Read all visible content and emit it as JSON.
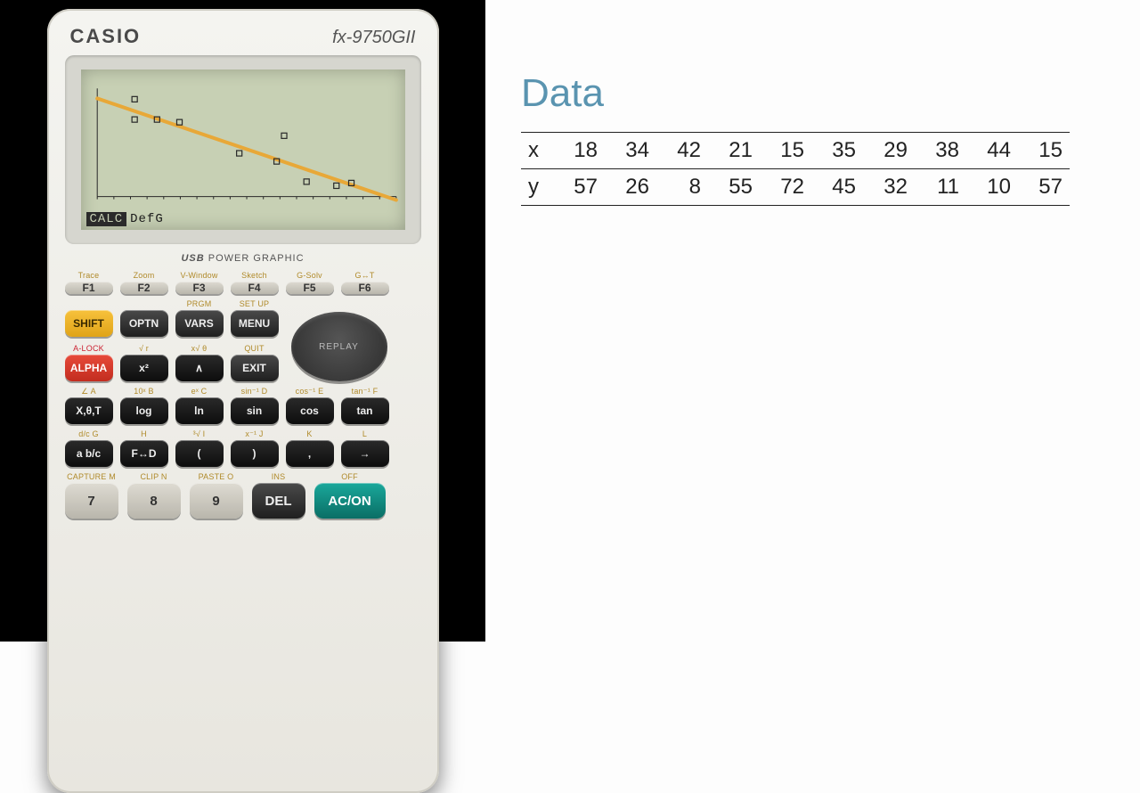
{
  "calculator": {
    "brand": "CASIO",
    "model": "fx-9750GII",
    "sublabel_left": "USB",
    "sublabel_right": "POWER GRAPHIC",
    "screen": {
      "background_color": "#c7d0b4",
      "axis_color": "#2a2a2a",
      "marker_color": "#2a2a2a",
      "line_color": "#e8a838",
      "line_width": 4,
      "menu_items": [
        "CALC",
        "DefG"
      ],
      "plot": {
        "type": "scatter+line",
        "xlim": [
          10,
          50
        ],
        "ylim": [
          0,
          80
        ],
        "regression": {
          "a": -1.88,
          "b": 91.4
        },
        "points_x": [
          18,
          34,
          42,
          21,
          15,
          35,
          29,
          38,
          44,
          15
        ],
        "points_y": [
          57,
          26,
          8,
          55,
          72,
          45,
          32,
          11,
          10,
          57
        ],
        "x_ticks": 18
      }
    },
    "fkeys": [
      {
        "sup": "Trace",
        "label": "F1"
      },
      {
        "sup": "Zoom",
        "label": "F2"
      },
      {
        "sup": "V-Window",
        "label": "F3"
      },
      {
        "sup": "Sketch",
        "label": "F4"
      },
      {
        "sup": "G-Solv",
        "label": "G-Solv",
        "label2": "F5"
      },
      {
        "sup": "G↔T",
        "label": "F6"
      }
    ],
    "row2": {
      "left": [
        {
          "sup": "",
          "label": "SHIFT",
          "cls": "k-shift"
        },
        {
          "sup": "",
          "label": "OPTN",
          "cls": "k-dark"
        },
        {
          "sup": "PRGM",
          "label": "VARS",
          "cls": "k-dark"
        },
        {
          "sup": "SET UP",
          "label": "MENU",
          "cls": "k-dark"
        },
        {
          "sup": "A-LOCK",
          "label": "ALPHA",
          "cls": "k-alpha",
          "supcls": "red"
        },
        {
          "sup": "√   r",
          "label": "x²",
          "cls": "k-black"
        },
        {
          "sup": "x√   θ",
          "label": "∧",
          "cls": "k-black"
        },
        {
          "sup": "QUIT",
          "label": "EXIT",
          "cls": "k-dark"
        }
      ],
      "replay_label": "REPLAY"
    },
    "row3": [
      {
        "sup": "∠   A",
        "label": "X,θ,T",
        "cls": "k-black"
      },
      {
        "sup": "10ˣ  B",
        "label": "log",
        "cls": "k-black"
      },
      {
        "sup": "eˣ  C",
        "label": "ln",
        "cls": "k-black"
      },
      {
        "sup": "sin⁻¹ D",
        "label": "sin",
        "cls": "k-black"
      },
      {
        "sup": "cos⁻¹ E",
        "label": "cos",
        "cls": "k-black"
      },
      {
        "sup": "tan⁻¹ F",
        "label": "tan",
        "cls": "k-black"
      }
    ],
    "row4": [
      {
        "sup": "d/c  G",
        "label": "a b/c",
        "cls": "k-black"
      },
      {
        "sup": "   H",
        "label": "F↔D",
        "cls": "k-black"
      },
      {
        "sup": "³√  I",
        "label": "(",
        "cls": "k-black"
      },
      {
        "sup": "x⁻¹  J",
        "label": ")",
        "cls": "k-black"
      },
      {
        "sup": "   K",
        "label": ",",
        "cls": "k-black"
      },
      {
        "sup": "   L",
        "label": "→",
        "cls": "k-black"
      }
    ],
    "row5": [
      {
        "sup": "CAPTURE M",
        "label": "7",
        "cls": "k-grey"
      },
      {
        "sup": "CLIP  N",
        "label": "8",
        "cls": "k-grey"
      },
      {
        "sup": "PASTE O",
        "label": "9",
        "cls": "k-grey"
      },
      {
        "sup": "INS",
        "label": "DEL",
        "cls": "k-dark"
      },
      {
        "sup": "OFF",
        "label": "AC/ON",
        "cls": "k-teal"
      }
    ]
  },
  "data_panel": {
    "title": "Data",
    "title_color": "#5a94b0",
    "title_fontsize": 44,
    "cell_fontsize": 24,
    "border_color": "#222222",
    "rows": [
      {
        "label": "x",
        "values": [
          18,
          34,
          42,
          21,
          15,
          35,
          29,
          38,
          44,
          15
        ]
      },
      {
        "label": "y",
        "values": [
          57,
          26,
          8,
          55,
          72,
          45,
          32,
          11,
          10,
          57
        ]
      }
    ]
  }
}
